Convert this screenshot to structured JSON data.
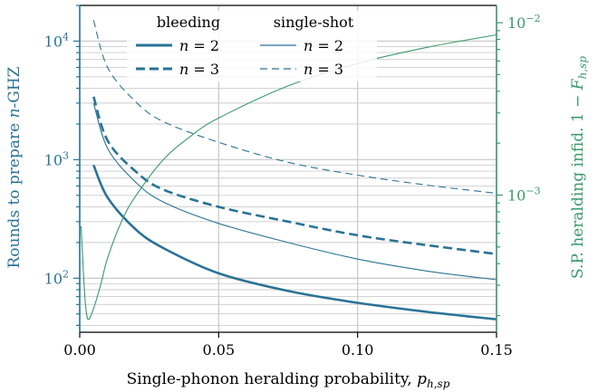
{
  "chart_data": {
    "type": "line",
    "title": "",
    "xlabel": "Single-phonon heralding probability, p_{h,sp}",
    "ylabel_left": "Rounds to prepare n-GHZ",
    "ylabel_right": "S.P. heralding infid. 1 − F_{h,sp}",
    "xlim": [
      0.0,
      0.15
    ],
    "ylim_left": [
      35,
      20000
    ],
    "ylim_right": [
      0.00016,
      0.0126
    ],
    "yscale_left": "log",
    "yscale_right": "log",
    "x_ticks": [
      {
        "value": 0.0,
        "label": "0.00"
      },
      {
        "value": 0.05,
        "label": "0.05"
      },
      {
        "value": 0.1,
        "label": "0.10"
      },
      {
        "value": 0.15,
        "label": "0.15"
      }
    ],
    "y_left_ticks": [
      {
        "value": 100,
        "label": "10^2"
      },
      {
        "value": 1000,
        "label": "10^3"
      },
      {
        "value": 10000,
        "label": "10^4"
      }
    ],
    "y_right_ticks": [
      {
        "value": 0.001,
        "label": "10^-3"
      },
      {
        "value": 0.01,
        "label": "10^-2"
      }
    ],
    "grid": true,
    "legend": {
      "placement": "top-center",
      "column_titles": [
        "bleeding",
        "single-shot"
      ],
      "rows": [
        "n = 2",
        "n = 3"
      ]
    },
    "colors": {
      "left_axis": "#2a7396",
      "right_axis": "#3a9a6a",
      "grid": "#cccccc"
    },
    "series": [
      {
        "group": "bleeding",
        "name": "n = 2",
        "axis": "left",
        "style": "thick-solid",
        "x": [
          0.005,
          0.01,
          0.02,
          0.03,
          0.05,
          0.075,
          0.1,
          0.125,
          0.15
        ],
        "y": [
          900,
          480,
          260,
          180,
          110,
          78,
          62,
          52,
          45
        ]
      },
      {
        "group": "bleeding",
        "name": "n = 3",
        "axis": "left",
        "style": "thick-dashed",
        "x": [
          0.005,
          0.01,
          0.02,
          0.03,
          0.05,
          0.075,
          0.1,
          0.125,
          0.15
        ],
        "y": [
          3400,
          1450,
          800,
          560,
          400,
          300,
          230,
          190,
          160
        ]
      },
      {
        "group": "single-shot",
        "name": "n = 2",
        "axis": "left",
        "style": "thin-solid",
        "x": [
          0.005,
          0.01,
          0.02,
          0.03,
          0.05,
          0.075,
          0.1,
          0.125,
          0.15
        ],
        "y": [
          3000,
          1250,
          650,
          440,
          290,
          200,
          145,
          115,
          97
        ]
      },
      {
        "group": "single-shot",
        "name": "n = 3",
        "axis": "left",
        "style": "thin-dashed",
        "x": [
          0.005,
          0.01,
          0.02,
          0.03,
          0.05,
          0.075,
          0.1,
          0.125,
          0.15
        ],
        "y": [
          15000,
          6000,
          3100,
          2100,
          1400,
          950,
          740,
          610,
          520
        ]
      },
      {
        "group": "infidelity",
        "name": "",
        "axis": "right",
        "style": "thin-solid",
        "x": [
          0.0005,
          0.001,
          0.002,
          0.003,
          0.005,
          0.0075,
          0.01,
          0.015,
          0.02,
          0.03,
          0.04,
          0.05,
          0.075,
          0.1,
          0.125,
          0.15
        ],
        "y": [
          0.00066,
          0.00045,
          0.00024,
          0.00019,
          0.00022,
          0.0003,
          0.00043,
          0.0007,
          0.00098,
          0.0016,
          0.0022,
          0.0028,
          0.0043,
          0.0058,
          0.0072,
          0.0085
        ]
      }
    ]
  }
}
